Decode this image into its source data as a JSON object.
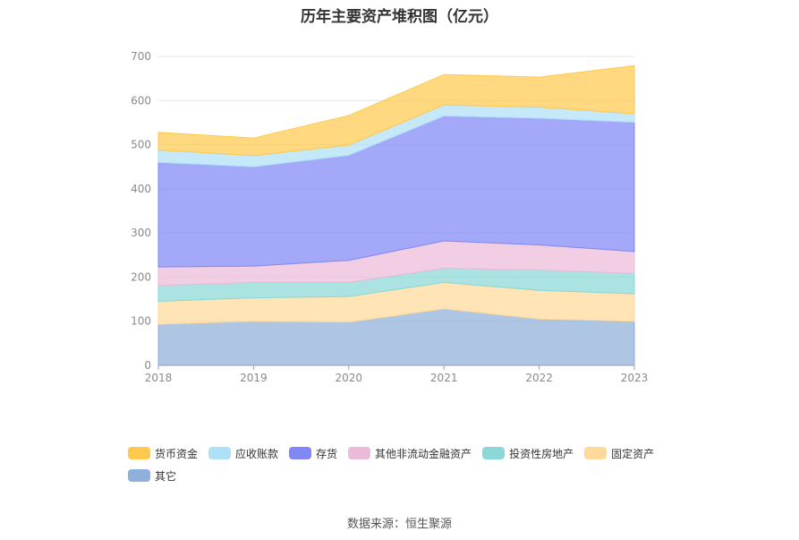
{
  "title": "历年主要资产堆积图（亿元）",
  "source": "数据来源：恒生聚源",
  "chart_data": {
    "type": "area",
    "stacked": true,
    "title": "历年主要资产堆积图（亿元）",
    "x": [
      "2018",
      "2019",
      "2020",
      "2021",
      "2022",
      "2023"
    ],
    "ylim": [
      0,
      700
    ],
    "yticks": [
      0,
      100,
      200,
      300,
      400,
      500,
      600,
      700
    ],
    "grid": true,
    "legend_position": "bottom",
    "series": [
      {
        "name": "其它",
        "color": "#8fb0da",
        "values": [
          93,
          100,
          98,
          128,
          105,
          100
        ]
      },
      {
        "name": "固定资产",
        "color": "#ffd99a",
        "values": [
          52,
          53,
          58,
          60,
          65,
          62
        ]
      },
      {
        "name": "投资性房地产",
        "color": "#8ad8d8",
        "values": [
          36,
          35,
          32,
          32,
          46,
          46
        ]
      },
      {
        "name": "其他非流动金融资产",
        "color": "#ebbbd9",
        "values": [
          42,
          37,
          50,
          62,
          57,
          50
        ]
      },
      {
        "name": "存货",
        "color": "#8088f5",
        "values": [
          237,
          225,
          238,
          283,
          287,
          293
        ]
      },
      {
        "name": "应收账款",
        "color": "#aee0f7",
        "values": [
          28,
          25,
          23,
          25,
          25,
          19
        ]
      },
      {
        "name": "货币资金",
        "color": "#ffc94d",
        "values": [
          40,
          40,
          67,
          69,
          68,
          109
        ]
      }
    ]
  }
}
